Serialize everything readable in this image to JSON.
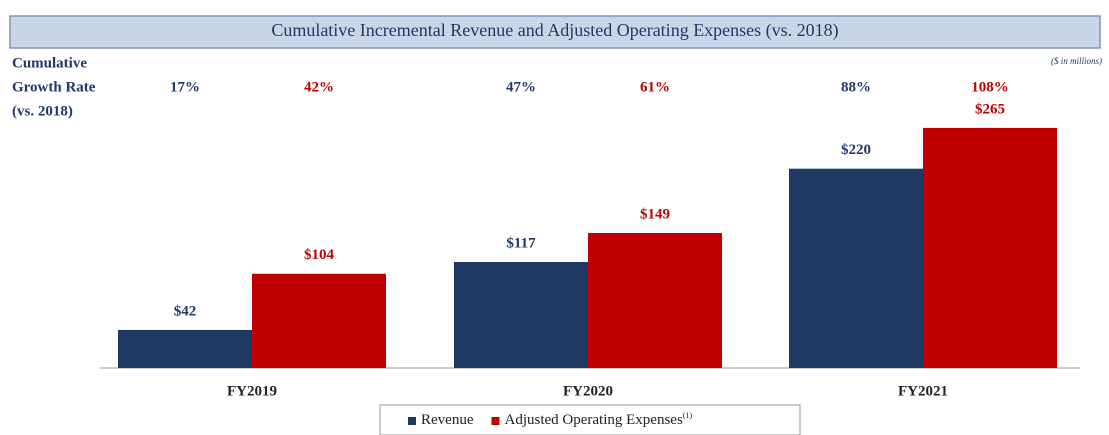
{
  "chart_data": {
    "type": "bar",
    "title": "Cumulative Incremental Revenue and Adjusted Operating Expenses (vs. 2018)",
    "note": "($ in millions)",
    "growth_rate_label": [
      "Cumulative",
      "Growth Rate",
      "(vs. 2018)"
    ],
    "categories": [
      "FY2019",
      "FY2020",
      "FY2021"
    ],
    "series": [
      {
        "name": "Revenue",
        "color": "#1f3864",
        "values": [
          42,
          117,
          220
        ],
        "value_labels": [
          "$42",
          "$117",
          "$220"
        ],
        "growth_rates": [
          17,
          47,
          88
        ],
        "growth_rate_labels": [
          "17%",
          "47%",
          "88%"
        ]
      },
      {
        "name": "Adjusted Operating Expenses",
        "name_superscript": "(1)",
        "color": "#c00000",
        "values": [
          104,
          149,
          265
        ],
        "value_labels": [
          "$104",
          "$149",
          "$265"
        ],
        "growth_rates": [
          42,
          61,
          108
        ],
        "growth_rate_labels": [
          "42%",
          "61%",
          "108%"
        ]
      }
    ],
    "legend": "bottom"
  }
}
